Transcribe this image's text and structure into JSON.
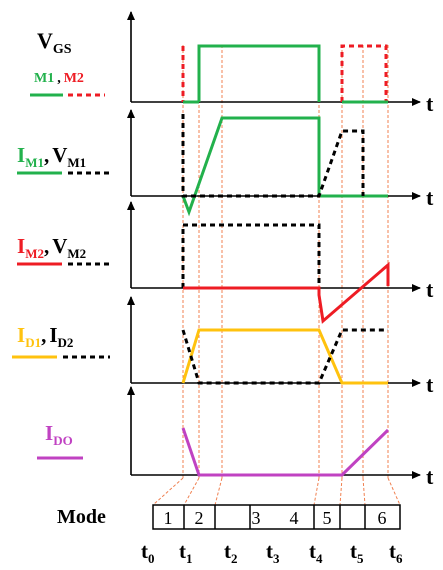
{
  "labels": {
    "vgs_main": "V",
    "vgs_sub": "GS",
    "m1": "M1",
    "comma": ",",
    "m2": "M2",
    "im1_main": "I",
    "im1_sub": "M1",
    "vm1_main": "V",
    "vm1_sub": "M1",
    "im2_main": "I",
    "im2_sub": "M2",
    "vm2_main": "V",
    "vm2_sub": "M2",
    "id1_main": "I",
    "id1_sub": "D1",
    "id2_main": "I",
    "id2_sub": "D2",
    "ido_main": "I",
    "ido_sub": "DO",
    "axis_t": "t",
    "mode": "Mode",
    "modes": [
      "1",
      "2",
      "3",
      "4",
      "5",
      "6"
    ],
    "times": [
      {
        "main": "t",
        "sub": "0"
      },
      {
        "main": "t",
        "sub": "1"
      },
      {
        "main": "t",
        "sub": "2"
      },
      {
        "main": "t",
        "sub": "3"
      },
      {
        "main": "t",
        "sub": "4"
      },
      {
        "main": "t",
        "sub": "5"
      },
      {
        "main": "t",
        "sub": "6"
      }
    ]
  },
  "colors": {
    "m1": "#22b14c",
    "m2": "#ee1c24",
    "voltage": "#000000",
    "id1": "#ffc20e",
    "ido": "#c042c2",
    "guide": "#f08050"
  }
}
